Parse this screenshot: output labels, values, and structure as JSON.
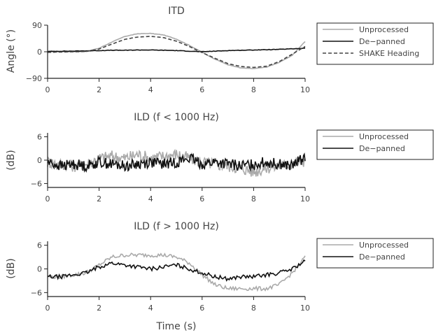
{
  "chart_data": [
    {
      "type": "line",
      "title": "ITD",
      "xlabel": "",
      "ylabel": "Angle (°)",
      "xlim": [
        0,
        10
      ],
      "ylim": [
        -90,
        90
      ],
      "xticks": [
        "0",
        "2",
        "4",
        "6",
        "8",
        "10"
      ],
      "yticks": [
        "90",
        "0",
        "−90"
      ],
      "ytick_values": [
        90,
        0,
        -90
      ],
      "legend_position": "right",
      "x": [
        0,
        0.5,
        1,
        1.5,
        2,
        2.5,
        3,
        3.5,
        4,
        4.5,
        5,
        5.5,
        6,
        6.5,
        7,
        7.5,
        8,
        8.5,
        9,
        9.5,
        10
      ],
      "series": [
        {
          "name": "Unprocessed",
          "style": "solid",
          "color": "#aaaaaa",
          "values": [
            0,
            0,
            0,
            1,
            12,
            33,
            52,
            61,
            62,
            57,
            43,
            22,
            -2,
            -25,
            -44,
            -55,
            -57,
            -52,
            -36,
            -12,
            35
          ]
        },
        {
          "name": "De−panned",
          "style": "solid",
          "color": "#111111",
          "values": [
            1,
            2,
            2,
            3,
            4,
            5,
            5,
            6,
            6,
            5,
            4,
            2,
            0,
            2,
            4,
            5,
            6,
            7,
            8,
            10,
            12
          ]
        },
        {
          "name": "SHAKE Heading",
          "style": "dashed",
          "color": "#444444",
          "values": [
            -2,
            -1,
            0,
            1,
            9,
            26,
            42,
            50,
            52,
            48,
            36,
            18,
            -3,
            -22,
            -40,
            -50,
            -53,
            -49,
            -33,
            -8,
            18
          ]
        }
      ]
    },
    {
      "type": "line",
      "title": "ILD (f < 1000 Hz)",
      "xlabel": "",
      "ylabel": "(dB)",
      "xlim": [
        0,
        10
      ],
      "ylim": [
        -7,
        7
      ],
      "xticks": [
        "0",
        "2",
        "4",
        "6",
        "8",
        "10"
      ],
      "yticks": [
        "6",
        "0",
        "−6"
      ],
      "ytick_values": [
        6,
        0,
        -6
      ],
      "legend_position": "right",
      "x": [
        0,
        0.5,
        1,
        1.5,
        2,
        2.5,
        3,
        3.5,
        4,
        4.5,
        5,
        5.5,
        6,
        6.5,
        7,
        7.5,
        8,
        8.5,
        9,
        9.5,
        10
      ],
      "series": [
        {
          "name": "Unprocessed",
          "style": "solid",
          "color": "#aaaaaa",
          "values": [
            -0.5,
            -1,
            -1.5,
            -1,
            0.5,
            1,
            0.5,
            1.5,
            0.5,
            1,
            1.5,
            0.5,
            -0.5,
            -1,
            -1.5,
            -2,
            -3,
            -2,
            -1.5,
            -1,
            0
          ]
        },
        {
          "name": "De−panned",
          "style": "solid",
          "color": "#111111",
          "values": [
            -0.5,
            -1.5,
            -1,
            -1.5,
            -0.5,
            -1,
            -1.5,
            -1,
            -0.5,
            -1,
            -0.5,
            0.5,
            -1,
            -0.5,
            -1,
            -1.5,
            -1,
            -0.5,
            -1,
            -1.5,
            1
          ]
        }
      ]
    },
    {
      "type": "line",
      "title": "ILD (f > 1000 Hz)",
      "xlabel": "Time (s)",
      "ylabel": "(dB)",
      "xlim": [
        0,
        10
      ],
      "ylim": [
        -7,
        7
      ],
      "xticks": [
        "0",
        "2",
        "4",
        "6",
        "8",
        "10"
      ],
      "yticks": [
        "6",
        "0",
        "−6"
      ],
      "ytick_values": [
        6,
        0,
        -6
      ],
      "legend_position": "right",
      "x": [
        0,
        0.5,
        1,
        1.5,
        2,
        2.5,
        3,
        3.5,
        4,
        4.5,
        5,
        5.5,
        6,
        6.5,
        7,
        7.5,
        8,
        8.5,
        9,
        9.5,
        10
      ],
      "series": [
        {
          "name": "Unprocessed",
          "style": "solid",
          "color": "#aaaaaa",
          "values": [
            -2,
            -2,
            -1.5,
            -1,
            1,
            3,
            3.5,
            3.5,
            3.5,
            3.5,
            3,
            1.5,
            -1.5,
            -4,
            -5,
            -5,
            -5,
            -5,
            -4,
            -1,
            3
          ]
        },
        {
          "name": "De−panned",
          "style": "solid",
          "color": "#111111",
          "values": [
            -2,
            -2,
            -1.5,
            -1,
            0.5,
            1.5,
            1,
            0.5,
            0,
            0.5,
            1,
            0,
            -1,
            -2,
            -2.5,
            -2,
            -2,
            -1.5,
            -1,
            0,
            2
          ]
        }
      ]
    }
  ]
}
